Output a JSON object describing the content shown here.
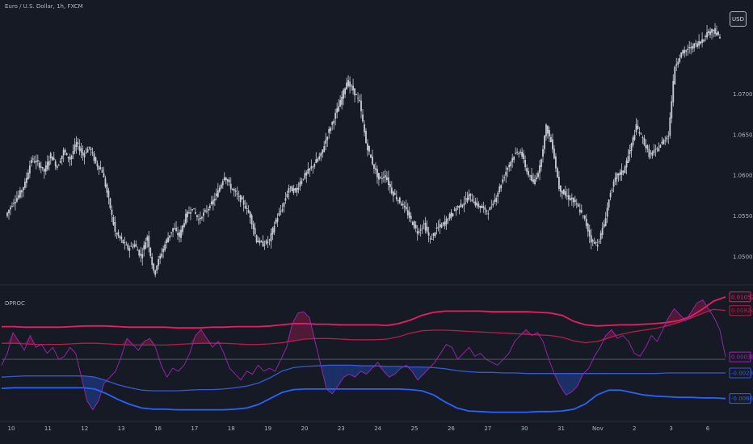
{
  "header": {
    "symbol_title": "Euro / U.S. Dollar, 1h, FXCM",
    "currency_button": "USD"
  },
  "indicator": {
    "title": "DPROC"
  },
  "colors": {
    "background": "#161a25",
    "price": "#c9ccd4",
    "upper_outer": "#e91e63",
    "upper_inner": "#b71c4a",
    "lower_inner": "#3759d6",
    "lower_outer": "#2962ff",
    "oscillator": "#9c27b0",
    "zero_line": "#5d606b"
  },
  "chart_data": [
    {
      "type": "candlestick",
      "title": "Euro / U.S. Dollar, 1h, FXCM",
      "x_ticks": [
        "10",
        "11",
        "12",
        "13",
        "16",
        "17",
        "18",
        "19",
        "20",
        "23",
        "24",
        "25",
        "26",
        "27",
        "30",
        "31",
        "Nov",
        "2",
        "3",
        "6"
      ],
      "y_ticks": [
        "1.07000",
        "1.06500",
        "1.06000",
        "1.05500",
        "1.05000"
      ],
      "ylim": [
        1.048,
        1.0798
      ],
      "close_series": [
        1.055,
        1.0565,
        1.0575,
        1.059,
        1.062,
        1.0615,
        1.0605,
        1.0625,
        1.061,
        1.063,
        1.062,
        1.064,
        1.0625,
        1.0635,
        1.0615,
        1.0605,
        1.057,
        1.053,
        1.052,
        1.051,
        1.0515,
        1.05,
        1.0525,
        1.048,
        1.05,
        1.052,
        1.0535,
        1.0525,
        1.055,
        1.056,
        1.0545,
        1.0555,
        1.0565,
        1.058,
        1.06,
        1.0585,
        1.0575,
        1.0565,
        1.055,
        1.052,
        1.0515,
        1.052,
        1.0545,
        1.056,
        1.0585,
        1.058,
        1.0595,
        1.0605,
        1.0615,
        1.0625,
        1.065,
        1.067,
        1.069,
        1.0715,
        1.0705,
        1.069,
        1.064,
        1.0615,
        1.0595,
        1.06,
        1.058,
        1.057,
        1.056,
        1.0545,
        1.053,
        1.054,
        1.052,
        1.0535,
        1.054,
        1.055,
        1.056,
        1.0565,
        1.0575,
        1.0565,
        1.056,
        1.0555,
        1.057,
        1.059,
        1.061,
        1.0625,
        1.063,
        1.0605,
        1.059,
        1.061,
        1.066,
        1.0635,
        1.0585,
        1.0575,
        1.057,
        1.056,
        1.0545,
        1.052,
        1.0515,
        1.054,
        1.058,
        1.06,
        1.0605,
        1.063,
        1.066,
        1.0645,
        1.0625,
        1.063,
        1.064,
        1.065,
        1.0735,
        1.075,
        1.0755,
        1.076,
        1.0765,
        1.0775,
        1.078,
        1.0768
      ],
      "series": [
        {
          "name": "EUR/USD",
          "values": []
        }
      ]
    },
    {
      "type": "line",
      "title": "DPROC",
      "ylim": [
        -0.0095,
        0.0121
      ],
      "zero": 0.0,
      "last_values": [
        "0.01052",
        "0.00824",
        "0.00038",
        "-0.00232",
        "-0.00660"
      ],
      "series": [
        {
          "name": "upper_outer",
          "values": [
            0.0055,
            0.0055,
            0.0054,
            0.0054,
            0.0054,
            0.0054,
            0.0055,
            0.0056,
            0.0056,
            0.0056,
            0.0055,
            0.0054,
            0.0054,
            0.0054,
            0.0054,
            0.0053,
            0.0053,
            0.0053,
            0.0054,
            0.0054,
            0.0055,
            0.0055,
            0.0055,
            0.0056,
            0.0058,
            0.006,
            0.006,
            0.0059,
            0.0059,
            0.0058,
            0.0058,
            0.0058,
            0.0058,
            0.0057,
            0.006,
            0.0066,
            0.0074,
            0.0079,
            0.0081,
            0.0081,
            0.0081,
            0.0081,
            0.008,
            0.008,
            0.008,
            0.008,
            0.0079,
            0.0078,
            0.0074,
            0.0064,
            0.0058,
            0.0056,
            0.0057,
            0.0058,
            0.0058,
            0.0059,
            0.006,
            0.0062,
            0.0065,
            0.0072,
            0.0084,
            0.0098,
            0.0105
          ]
        },
        {
          "name": "upper_inner",
          "values": [
            0.0027,
            0.0027,
            0.0026,
            0.0025,
            0.0025,
            0.0025,
            0.0026,
            0.0027,
            0.0027,
            0.0026,
            0.0025,
            0.0024,
            0.0024,
            0.0024,
            0.0024,
            0.0025,
            0.0026,
            0.0027,
            0.0027,
            0.0027,
            0.0026,
            0.0025,
            0.0025,
            0.0026,
            0.0028,
            0.0031,
            0.0034,
            0.0035,
            0.0035,
            0.0034,
            0.0033,
            0.0033,
            0.0033,
            0.0034,
            0.0038,
            0.0044,
            0.0048,
            0.0049,
            0.0049,
            0.0048,
            0.0047,
            0.0046,
            0.0045,
            0.0044,
            0.0043,
            0.0042,
            0.0041,
            0.004,
            0.0037,
            0.0031,
            0.0028,
            0.003,
            0.0036,
            0.0042,
            0.0046,
            0.0049,
            0.0052,
            0.0056,
            0.0062,
            0.0069,
            0.0077,
            0.0084,
            0.0082
          ]
        },
        {
          "name": "lower_inner",
          "values": [
            -0.003,
            -0.0029,
            -0.0028,
            -0.0028,
            -0.0028,
            -0.0028,
            -0.0028,
            -0.0028,
            -0.003,
            -0.0036,
            -0.0043,
            -0.0048,
            -0.0052,
            -0.0053,
            -0.0053,
            -0.0053,
            -0.0052,
            -0.0051,
            -0.0051,
            -0.005,
            -0.0048,
            -0.0045,
            -0.004,
            -0.0031,
            -0.002,
            -0.0014,
            -0.0012,
            -0.0011,
            -0.001,
            -0.001,
            -0.001,
            -0.0011,
            -0.0011,
            -0.0012,
            -0.0012,
            -0.0013,
            -0.0013,
            -0.0014,
            -0.0016,
            -0.0019,
            -0.0021,
            -0.0022,
            -0.0022,
            -0.0023,
            -0.0023,
            -0.0024,
            -0.0024,
            -0.0024,
            -0.0024,
            -0.0024,
            -0.0024,
            -0.0024,
            -0.0024,
            -0.0024,
            -0.0024,
            -0.0024,
            -0.0024,
            -0.0023,
            -0.0023,
            -0.0023,
            -0.0023,
            -0.0023,
            -0.0023
          ]
        },
        {
          "name": "lower_outer",
          "values": [
            -0.0049,
            -0.0048,
            -0.0048,
            -0.0048,
            -0.0048,
            -0.0048,
            -0.0048,
            -0.0048,
            -0.005,
            -0.0058,
            -0.0068,
            -0.0076,
            -0.0082,
            -0.0084,
            -0.0084,
            -0.0085,
            -0.0085,
            -0.0085,
            -0.0085,
            -0.0085,
            -0.0084,
            -0.0082,
            -0.0076,
            -0.0066,
            -0.0056,
            -0.0051,
            -0.005,
            -0.005,
            -0.005,
            -0.005,
            -0.005,
            -0.005,
            -0.005,
            -0.005,
            -0.005,
            -0.0051,
            -0.0053,
            -0.006,
            -0.0072,
            -0.0082,
            -0.0087,
            -0.0088,
            -0.0089,
            -0.0089,
            -0.0089,
            -0.0089,
            -0.0088,
            -0.0088,
            -0.0087,
            -0.0084,
            -0.0075,
            -0.006,
            -0.0052,
            -0.0052,
            -0.0056,
            -0.006,
            -0.0062,
            -0.0063,
            -0.0064,
            -0.0064,
            -0.0065,
            -0.0065,
            -0.0066
          ]
        },
        {
          "name": "oscillator",
          "values": [
            -0.001,
            0.001,
            0.0045,
            0.003,
            0.0015,
            0.004,
            0.002,
            0.0025,
            0.001,
            0.002,
            0.0,
            0.0005,
            0.002,
            0.001,
            -0.003,
            -0.007,
            -0.0085,
            -0.007,
            -0.004,
            -0.003,
            -0.002,
            0.0005,
            0.0035,
            0.0025,
            0.0015,
            0.003,
            0.0035,
            0.002,
            -0.001,
            -0.003,
            -0.0015,
            -0.002,
            -0.001,
            0.001,
            0.004,
            0.005,
            0.0035,
            0.002,
            0.003,
            0.001,
            -0.0015,
            -0.0025,
            -0.0035,
            -0.002,
            -0.0025,
            -0.001,
            -0.002,
            -0.0015,
            -0.002,
            0.0,
            0.002,
            0.006,
            0.0078,
            0.008,
            0.007,
            0.003,
            -0.001,
            -0.005,
            -0.0058,
            -0.0045,
            -0.003,
            -0.0025,
            -0.003,
            -0.002,
            -0.0025,
            -0.0015,
            -0.0005,
            -0.002,
            -0.003,
            -0.0025,
            -0.0015,
            -0.001,
            -0.002,
            -0.0035,
            -0.0025,
            -0.0015,
            -0.0005,
            0.001,
            0.0025,
            0.002,
            0.0,
            0.001,
            0.002,
            0.0005,
            0.001,
            0.0,
            -0.0005,
            -0.001,
            0.0,
            0.001,
            0.003,
            0.004,
            0.005,
            0.004,
            0.0045,
            0.003,
            0.0,
            -0.0025,
            -0.0045,
            -0.006,
            -0.0055,
            -0.0045,
            -0.0025,
            -0.0015,
            0.0005,
            0.002,
            0.004,
            0.005,
            0.0035,
            0.004,
            0.003,
            0.001,
            0.0005,
            0.002,
            0.004,
            0.003,
            0.005,
            0.007,
            0.0085,
            0.0075,
            0.0065,
            0.008,
            0.0095,
            0.01,
            0.0085,
            0.007,
            0.005,
            0.0004
          ]
        }
      ]
    }
  ]
}
